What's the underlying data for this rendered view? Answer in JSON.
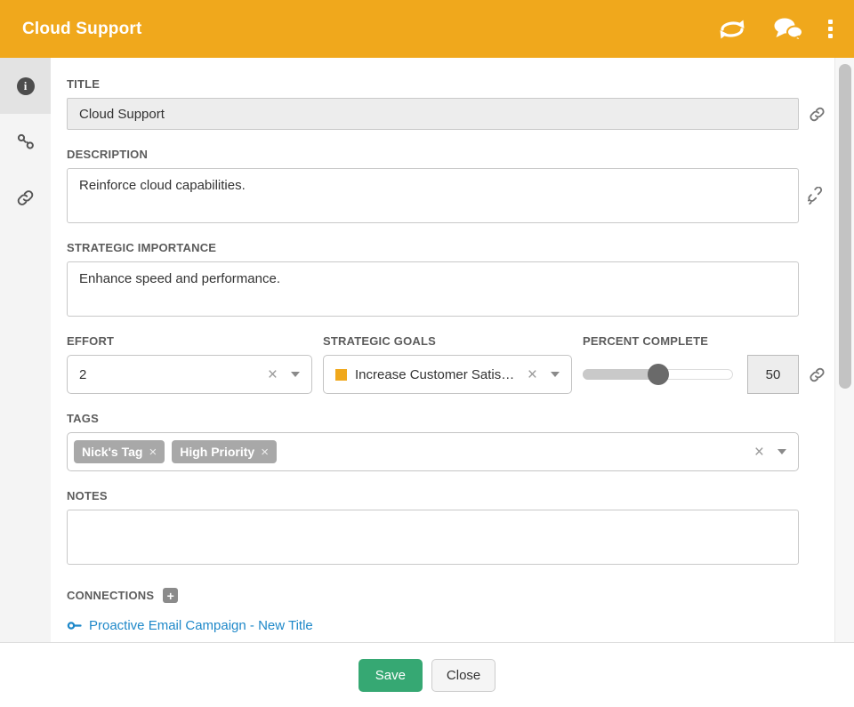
{
  "header": {
    "title": "Cloud Support"
  },
  "glyphs": {
    "clear": "×",
    "info": "i",
    "plus": "+"
  },
  "form": {
    "title": {
      "label": "TITLE",
      "value": "Cloud Support"
    },
    "description": {
      "label": "DESCRIPTION",
      "value": "Reinforce cloud capabilities."
    },
    "strategic_importance": {
      "label": "STRATEGIC IMPORTANCE",
      "value": "Enhance speed and performance."
    },
    "effort": {
      "label": "EFFORT",
      "value": "2"
    },
    "strategic_goals": {
      "label": "STRATEGIC GOALS",
      "value": "Increase Customer Satis…",
      "swatch_color": "#F0A81C"
    },
    "percent_complete": {
      "label": "PERCENT COMPLETE",
      "value": "50",
      "percent": 50
    },
    "tags": {
      "label": "TAGS",
      "items": [
        "Nick's Tag",
        "High Priority"
      ]
    },
    "notes": {
      "label": "NOTES",
      "value": ""
    },
    "connections": {
      "label": "CONNECTIONS",
      "links": [
        "Proactive Email Campaign - New Title"
      ]
    }
  },
  "footer": {
    "save_label": "Save",
    "close_label": "Close"
  },
  "colors": {
    "header_orange": "#F0A81C",
    "save_green": "#36A873",
    "link_blue": "#1E88C9"
  }
}
